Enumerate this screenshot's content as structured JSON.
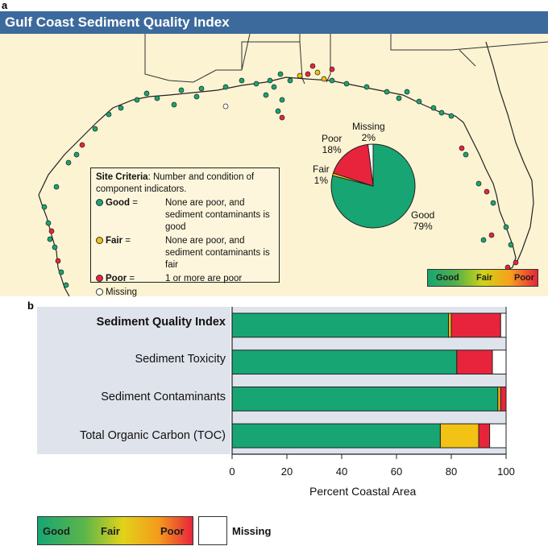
{
  "panel_a": {
    "letter": "a",
    "title": "Gulf Coast Sediment Quality Index",
    "criteria": {
      "heading": "Site Criteria",
      "heading_rest": ": Number and condition of component indicators.",
      "rows": [
        {
          "key": "Good",
          "eq": "=",
          "text": "None are poor, and sediment contaminants is good",
          "color": "#17a673"
        },
        {
          "key": "Fair",
          "eq": "=",
          "text": "None are poor, and sediment contaminants is fair",
          "color": "#f2c214"
        },
        {
          "key": "Poor",
          "eq": "=",
          "text": "1 or more are poor",
          "color": "#e8243c"
        },
        {
          "key": "Missing",
          "eq": "",
          "text": "",
          "color": "#ffffff"
        }
      ]
    },
    "legend": {
      "good": "Good",
      "fair": "Fair",
      "poor": "Poor"
    },
    "pie_labels": {
      "missing": [
        "Missing",
        "2%"
      ],
      "poor": [
        "Poor",
        "18%"
      ],
      "fair": [
        "Fair",
        "1%"
      ],
      "good": [
        "Good",
        "79%"
      ]
    }
  },
  "panel_b": {
    "letter": "b",
    "legend": {
      "good": "Good",
      "fair": "Fair",
      "poor": "Poor",
      "missing": "Missing"
    }
  },
  "colors": {
    "good": "#17a673",
    "fair": "#f2c214",
    "poor": "#e8243c",
    "missing": "#ffffff",
    "title_bg": "#3d6a9c"
  },
  "chart_data": [
    {
      "type": "pie",
      "title": "Gulf Coast Sediment Quality Index",
      "categories": [
        "Good",
        "Fair",
        "Poor",
        "Missing"
      ],
      "values": [
        79,
        1,
        18,
        2
      ],
      "unit": "%"
    },
    {
      "type": "bar",
      "orientation": "horizontal",
      "stacked": true,
      "categories": [
        "Sediment Quality Index",
        "Sediment Toxicity",
        "Sediment Contaminants",
        "Total Organic Carbon (TOC)"
      ],
      "series": [
        {
          "name": "Good",
          "values": [
            79,
            82,
            97,
            76
          ]
        },
        {
          "name": "Fair",
          "values": [
            1,
            0,
            1,
            14
          ]
        },
        {
          "name": "Poor",
          "values": [
            18,
            13,
            2,
            4
          ]
        },
        {
          "name": "Missing",
          "values": [
            2,
            5,
            0,
            6
          ]
        }
      ],
      "xlabel": "Percent Coastal Area",
      "xlim": [
        0,
        100
      ],
      "xticks": [
        0,
        20,
        40,
        60,
        80,
        100
      ]
    }
  ]
}
